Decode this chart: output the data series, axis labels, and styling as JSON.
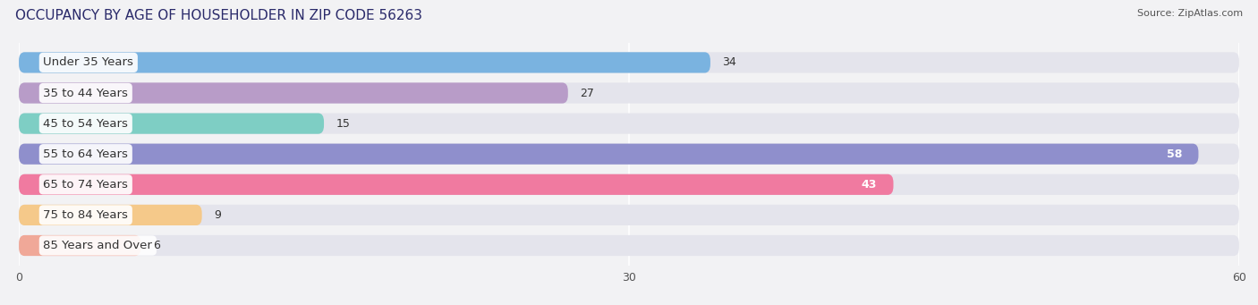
{
  "title": "OCCUPANCY BY AGE OF HOUSEHOLDER IN ZIP CODE 56263",
  "source": "Source: ZipAtlas.com",
  "categories": [
    "Under 35 Years",
    "35 to 44 Years",
    "45 to 54 Years",
    "55 to 64 Years",
    "65 to 74 Years",
    "75 to 84 Years",
    "85 Years and Over"
  ],
  "values": [
    34,
    27,
    15,
    58,
    43,
    9,
    6
  ],
  "bar_colors": [
    "#7ab3e0",
    "#b89cc8",
    "#7ecec4",
    "#8f8fcc",
    "#f07aa0",
    "#f5c98a",
    "#f0a898"
  ],
  "xlim": [
    0,
    60
  ],
  "xticks": [
    0,
    30,
    60
  ],
  "background_color": "#f2f2f4",
  "bar_bg_color": "#e4e4ec",
  "title_fontsize": 11,
  "label_fontsize": 9.5,
  "value_fontsize": 9,
  "bar_height": 0.68,
  "fig_width": 14.06,
  "fig_height": 3.41
}
